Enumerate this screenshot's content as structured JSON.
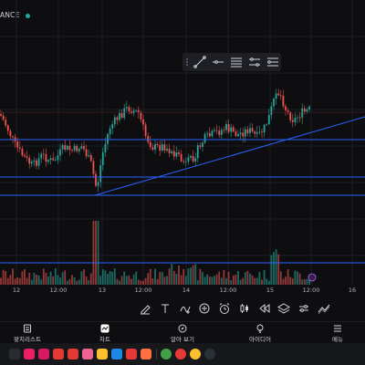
{
  "header": {
    "ticker_fragment": "ANCE",
    "live_status_color": "#26a69a"
  },
  "drawing_toolbar": {
    "tools": [
      {
        "icon": "drag-grip-icon"
      },
      {
        "icon": "trend-line-icon"
      },
      {
        "icon": "horizontal-ray-icon"
      },
      {
        "icon": "fib-retracement-icon"
      },
      {
        "icon": "parallel-channel-icon"
      },
      {
        "icon": "pitchfork-icon"
      }
    ]
  },
  "time_axis": {
    "labels": [
      {
        "text": "12",
        "key": "d12"
      },
      {
        "text": "12:00",
        "key": "h1"
      },
      {
        "text": "13",
        "key": "d13"
      },
      {
        "text": "12:00",
        "key": "h2"
      },
      {
        "text": "14",
        "key": "d14"
      },
      {
        "text": "12:00",
        "key": "h3"
      },
      {
        "text": "15",
        "key": "d15"
      },
      {
        "text": "12:00",
        "key": "h4"
      },
      {
        "text": "16",
        "key": "d16"
      }
    ]
  },
  "chart_tools": {
    "icons": [
      "pencil-icon",
      "text-tool-icon",
      "add-indicator-icon",
      "plus-icon",
      "alarm-clock-icon",
      "candle-type-icon",
      "rewind-icon",
      "layers-icon",
      "settings-sliders-icon",
      "more-tools-icon"
    ]
  },
  "bottom_nav": {
    "items": [
      {
        "key": "watchlist",
        "label": "왓치리스트",
        "icon": "watchlist-icon"
      },
      {
        "key": "chart",
        "label": "차트",
        "icon": "chart-icon"
      },
      {
        "key": "explore",
        "label": "알아 보기",
        "icon": "compass-icon"
      },
      {
        "key": "ideas",
        "label": "아이디어",
        "icon": "lightbulb-icon"
      },
      {
        "key": "menu",
        "label": "메뉴",
        "icon": "hamburger-menu-icon"
      }
    ]
  },
  "taskbar": {
    "apps": [
      {
        "icon": "app-drawer-icon",
        "color": "#2a2b30"
      },
      {
        "icon": "flower-app-icon",
        "color": "#e91e63"
      },
      {
        "icon": "camera-app-icon",
        "color": "#d81b60"
      },
      {
        "icon": "news-app-icon",
        "color": "#e53935"
      },
      {
        "icon": "flipboard-app-icon",
        "color": "#e53935"
      },
      {
        "icon": "grid-app-icon",
        "color": "#f06292"
      },
      {
        "icon": "talk-app-icon",
        "color": "#fbc02d"
      },
      {
        "icon": "calendar-app-icon",
        "color": "#1e88e5"
      },
      {
        "icon": "cross-app-icon",
        "color": "#e53935"
      },
      {
        "icon": "tiles-app-icon",
        "color": "#ff7043"
      },
      {
        "icon": "chrome-app-icon",
        "color": "#43a047"
      },
      {
        "icon": "camera-round-app-icon",
        "color": "#e53935"
      },
      {
        "icon": "drive-app-icon",
        "color": "#fbc02d"
      },
      {
        "icon": "dark-app-icon",
        "color": "#263238"
      }
    ]
  },
  "colors": {
    "up": "#26a69a",
    "down": "#ef5350",
    "line": "#2962ff"
  }
}
